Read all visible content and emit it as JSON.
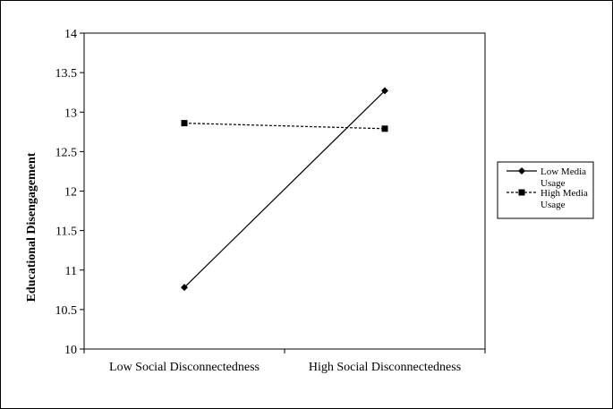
{
  "chart_data": {
    "type": "line",
    "title": "",
    "xlabel": "",
    "ylabel": "Educational Disengagement",
    "categories": [
      "Low Social Disconnectedness",
      "High Social Disconnectedness"
    ],
    "ylim": [
      10,
      14
    ],
    "yticks": [
      "10",
      "10.5",
      "11",
      "11.5",
      "12",
      "12.5",
      "13",
      "13.5",
      "14"
    ],
    "grid": false,
    "legend_position": "right",
    "series": [
      {
        "name": "Low Media Usage",
        "legend_lines": [
          "Low Media",
          "Usage"
        ],
        "values": [
          10.78,
          13.27
        ],
        "marker": "diamond",
        "line_style": "solid",
        "color": "#000000"
      },
      {
        "name": "High Media Usage",
        "legend_lines": [
          "High Media",
          "Usage"
        ],
        "values": [
          12.86,
          12.79
        ],
        "marker": "square",
        "line_style": "dashed",
        "color": "#000000"
      }
    ]
  }
}
